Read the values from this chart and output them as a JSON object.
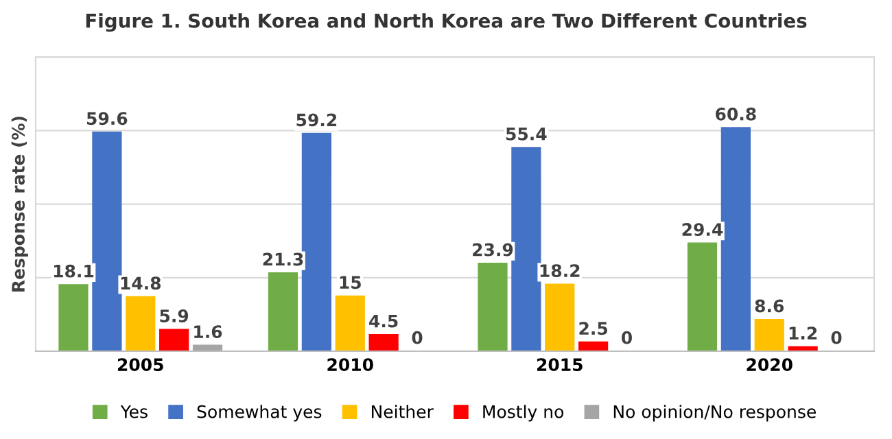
{
  "chart_data": {
    "type": "bar",
    "title": "Figure 1. South Korea and North Korea are Two Different Countries",
    "ylabel": "Response rate (%)",
    "categories": [
      "2005",
      "2010",
      "2015",
      "2020"
    ],
    "series": [
      {
        "name": "Yes",
        "color": "#70ad47",
        "values": [
          18.1,
          21.3,
          23.9,
          29.4
        ]
      },
      {
        "name": "Somewhat yes",
        "color": "#4472c4",
        "values": [
          59.6,
          59.2,
          55.4,
          60.8
        ]
      },
      {
        "name": "Neither",
        "color": "#ffc000",
        "values": [
          14.8,
          15,
          18.2,
          8.6
        ]
      },
      {
        "name": "Mostly no",
        "color": "#ff0000",
        "values": [
          5.9,
          4.5,
          2.5,
          1.2
        ]
      },
      {
        "name": "No opinion/No response",
        "color": "#a5a5a5",
        "values": [
          1.6,
          0,
          0,
          0
        ]
      }
    ],
    "ylim": [
      0,
      80
    ],
    "yticks": [
      0,
      20,
      40,
      60,
      80
    ],
    "grid": "y",
    "legend": "bottom",
    "data_labels": true,
    "tick_labels": "x"
  }
}
